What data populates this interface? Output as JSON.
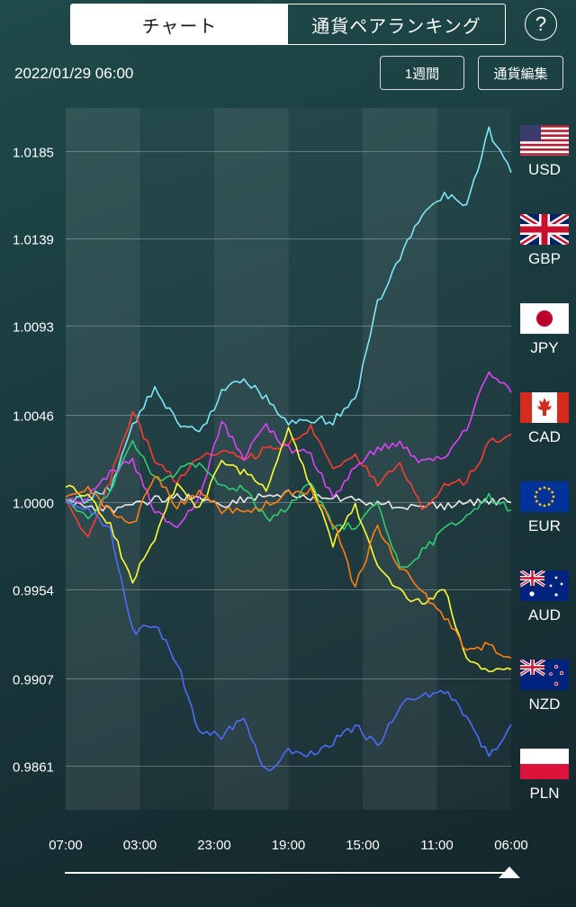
{
  "tabs": {
    "chart": "チャート",
    "ranking": "通貨ペアランキング"
  },
  "help_label": "?",
  "timestamp": "2022/01/29 06:00",
  "buttons": {
    "period": "1週間",
    "edit_currencies": "通貨編集"
  },
  "legend": [
    {
      "code": "USD",
      "color": "#7fe6f5",
      "icon": "us-flag-icon"
    },
    {
      "code": "GBP",
      "color": "#e9e9e9",
      "icon": "uk-flag-icon"
    },
    {
      "code": "JPY",
      "color": "#ff3b30",
      "icon": "japan-flag-icon"
    },
    {
      "code": "CAD",
      "color": "#e040fb",
      "icon": "canada-flag-icon"
    },
    {
      "code": "EUR",
      "color": "#2ecc71",
      "icon": "eu-flag-icon"
    },
    {
      "code": "AUD",
      "color": "#ffff33",
      "icon": "australia-flag-icon"
    },
    {
      "code": "NZD",
      "color": "#ff7f11",
      "icon": "new-zealand-flag-icon"
    },
    {
      "code": "PLN",
      "color": "#4d6bff",
      "icon": "poland-flag-icon"
    }
  ],
  "chart_data": {
    "type": "line",
    "title": "",
    "xlabel": "",
    "ylabel": "",
    "x_ticks": [
      "07:00",
      "03:00",
      "23:00",
      "19:00",
      "15:00",
      "11:00",
      "06:00"
    ],
    "y_ticks": [
      "1.0185",
      "1.0139",
      "1.0093",
      "1.0046",
      "1.0000",
      "0.9954",
      "0.9907",
      "0.9861"
    ],
    "ylim": [
      0.9838,
      1.0208
    ],
    "grid": true,
    "series": [
      {
        "name": "USD",
        "color": "#7fe6f5",
        "values": [
          1.0,
          1.0002,
          1.0008,
          1.004,
          1.0061,
          1.0042,
          1.0036,
          1.0058,
          1.0066,
          1.0055,
          1.0042,
          1.0044,
          1.0043,
          1.0054,
          1.0105,
          1.0129,
          1.0152,
          1.0162,
          1.0157,
          1.0196,
          1.0174
        ]
      },
      {
        "name": "GBP",
        "color": "#e9e9e9",
        "values": [
          1.0,
          0.9998,
          0.9996,
          0.9998,
          1.0002,
          1.0003,
          1.0003,
          0.9999,
          1.0002,
          1.0004,
          1.0005,
          1.0002,
          1.0003,
          1.0001,
          1.0,
          0.9998,
          0.9999,
          0.9998,
          1.0,
          1.0001,
          1.0
        ]
      },
      {
        "name": "JPY",
        "color": "#ff3b30",
        "values": [
          1.0002,
          0.9982,
          1.0012,
          1.0048,
          1.0022,
          1.0011,
          1.0025,
          1.0028,
          1.0022,
          1.0028,
          1.0031,
          1.0039,
          1.0018,
          1.0026,
          1.0009,
          1.0022,
          0.9996,
          1.0008,
          1.0012,
          1.0031,
          1.0036
        ]
      },
      {
        "name": "CAD",
        "color": "#e040fb",
        "values": [
          1.0,
          1.0003,
          1.0015,
          1.0022,
          0.9995,
          0.9987,
          1.0002,
          1.0042,
          1.0024,
          1.0041,
          1.0028,
          1.0025,
          1.0002,
          1.0019,
          1.0029,
          1.0031,
          1.0021,
          1.0024,
          1.004,
          1.0069,
          1.0058
        ]
      },
      {
        "name": "EUR",
        "color": "#2ecc71",
        "values": [
          1.0002,
          0.9992,
          1.0006,
          1.0034,
          1.0012,
          1.0016,
          1.0021,
          1.0009,
          1.0007,
          0.9991,
          0.9998,
          1.001,
          0.9987,
          0.9988,
          0.9999,
          0.9965,
          0.9974,
          0.9985,
          0.9994,
          1.0003,
          0.9996
        ]
      },
      {
        "name": "AUD",
        "color": "#ffff33",
        "values": [
          1.0008,
          1.0004,
          0.9988,
          0.9958,
          0.9982,
          1.0011,
          0.9996,
          1.0022,
          1.0016,
          1.0006,
          1.0041,
          1.0009,
          0.9978,
          0.9998,
          0.9968,
          0.9953,
          0.9946,
          0.9956,
          0.9917,
          0.9911,
          0.9912
        ]
      },
      {
        "name": "NZD",
        "color": "#ff7f11",
        "values": [
          1.0003,
          1.0007,
          0.9995,
          0.9988,
          1.0014,
          0.9998,
          1.0005,
          0.9996,
          0.9995,
          0.9999,
          1.0005,
          1.0006,
          0.999,
          0.9955,
          0.9988,
          0.9966,
          0.9953,
          0.994,
          0.9922,
          0.9925,
          0.9918
        ]
      },
      {
        "name": "PLN",
        "color": "#4d6bff",
        "values": [
          1.0,
          0.9996,
          0.9985,
          0.9932,
          0.9935,
          0.9916,
          0.9878,
          0.9877,
          0.9886,
          0.9858,
          0.9869,
          0.9867,
          0.9874,
          0.9882,
          0.9872,
          0.9893,
          0.9898,
          0.9901,
          0.9887,
          0.9866,
          0.9883
        ]
      }
    ]
  }
}
